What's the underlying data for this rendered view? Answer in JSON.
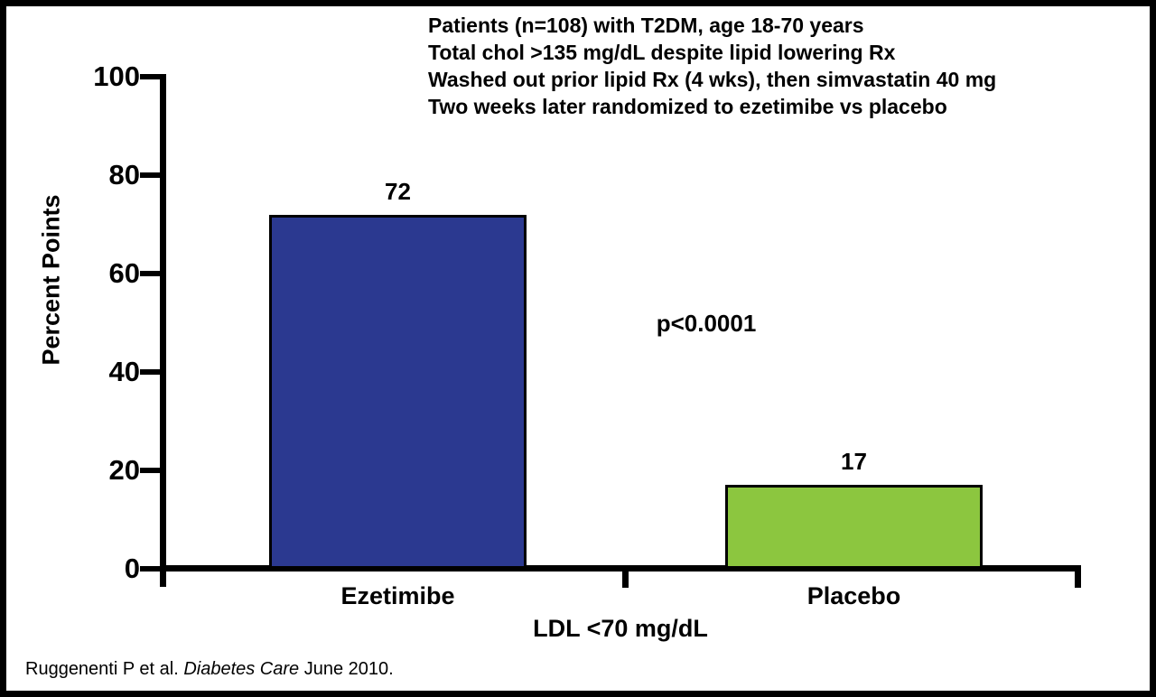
{
  "header": {
    "lines": [
      "Patients (n=108) with T2DM, age 18-70 years",
      "Total chol >135 mg/dL despite lipid lowering Rx",
      "Washed out prior lipid Rx (4 wks), then simvastatin 40 mg",
      "Two weeks later randomized to ezetimibe vs placebo"
    ]
  },
  "chart_data": {
    "type": "bar",
    "categories": [
      "Ezetimibe",
      "Placebo"
    ],
    "values": [
      72,
      17
    ],
    "bar_colors": [
      "#2B3990",
      "#8CC63F"
    ],
    "ylabel": "Percent Points",
    "xlabel": "LDL <70 mg/dL",
    "ylim": [
      0,
      100
    ],
    "yticks": [
      100,
      80,
      60,
      40,
      20,
      0
    ],
    "ytick_labels": [
      "100",
      "80",
      "60",
      "40",
      "20",
      "0"
    ],
    "grid": false,
    "legend": "none",
    "annotation": "p<0.0001"
  },
  "footer": {
    "citation_prefix": "Ruggenenti P et al. ",
    "citation_journal": "Diabetes Care",
    "citation_suffix": " June 2010."
  }
}
